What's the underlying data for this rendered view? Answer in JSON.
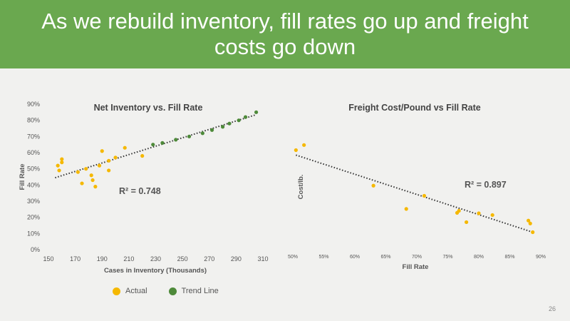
{
  "slide": {
    "title": "As we rebuild inventory, fill rates go up and freight costs go down",
    "page_number": "26"
  },
  "colors": {
    "banner": "#6aa84f",
    "actual": "#f5b800",
    "trend": "#4e8a3a",
    "trendline": "#333333"
  },
  "legend": {
    "actual": "Actual",
    "trend": "Trend Line"
  },
  "chart_data": [
    {
      "type": "scatter",
      "title": "Net Inventory vs. Fill Rate",
      "xlabel": "Cases in Inventory  (Thousands)",
      "ylabel": "Fill Rate",
      "xlim": [
        150,
        310
      ],
      "ylim": [
        0,
        0.9
      ],
      "xticks": [
        "150",
        "170",
        "190",
        "210",
        "230",
        "250",
        "270",
        "290",
        "310"
      ],
      "yticks": [
        "0%",
        "10%",
        "20%",
        "30%",
        "40%",
        "50%",
        "60%",
        "70%",
        "80%",
        "90%"
      ],
      "annotation": "R² = 0.748",
      "series": [
        {
          "name": "Actual",
          "points": [
            [
              157,
              0.52
            ],
            [
              158,
              0.49
            ],
            [
              160,
              0.56
            ],
            [
              160,
              0.54
            ],
            [
              172,
              0.48
            ],
            [
              175,
              0.41
            ],
            [
              178,
              0.5
            ],
            [
              182,
              0.46
            ],
            [
              183,
              0.43
            ],
            [
              185,
              0.39
            ],
            [
              188,
              0.52
            ],
            [
              190,
              0.61
            ],
            [
              195,
              0.55
            ],
            [
              195,
              0.49
            ],
            [
              200,
              0.57
            ],
            [
              207,
              0.63
            ],
            [
              220,
              0.58
            ]
          ]
        },
        {
          "name": "Trend Line",
          "points": [
            [
              228,
              0.65
            ],
            [
              235,
              0.66
            ],
            [
              245,
              0.68
            ],
            [
              255,
              0.7
            ],
            [
              265,
              0.72
            ],
            [
              272,
              0.74
            ],
            [
              280,
              0.76
            ],
            [
              285,
              0.78
            ],
            [
              292,
              0.8
            ],
            [
              297,
              0.82
            ],
            [
              305,
              0.85
            ]
          ]
        }
      ],
      "trendline": [
        [
          155,
          0.445
        ],
        [
          305,
          0.835
        ]
      ]
    },
    {
      "type": "scatter",
      "title": "Freight Cost/Pound vs Fill Rate",
      "xlabel": "Fill Rate",
      "ylabel": "Cost/lb.",
      "xlim": [
        0.5,
        0.9
      ],
      "ylim": [
        0,
        1
      ],
      "xticks": [
        "50%",
        "55%",
        "60%",
        "65%",
        "70%",
        "75%",
        "80%",
        "85%",
        "90%"
      ],
      "annotation": "R² = 0.897",
      "series": [
        {
          "name": "Actual",
          "points": [
            [
              0.505,
              0.684
            ],
            [
              0.518,
              0.719
            ],
            [
              0.63,
              0.44
            ],
            [
              0.683,
              0.28
            ],
            [
              0.712,
              0.37
            ],
            [
              0.765,
              0.253
            ],
            [
              0.768,
              0.267
            ],
            [
              0.78,
              0.189
            ],
            [
              0.8,
              0.25
            ],
            [
              0.822,
              0.238
            ],
            [
              0.88,
              0.2
            ],
            [
              0.883,
              0.18
            ],
            [
              0.887,
              0.12
            ]
          ]
        }
      ],
      "trendline": [
        [
          0.505,
          0.65
        ],
        [
          0.887,
          0.12
        ]
      ]
    }
  ]
}
